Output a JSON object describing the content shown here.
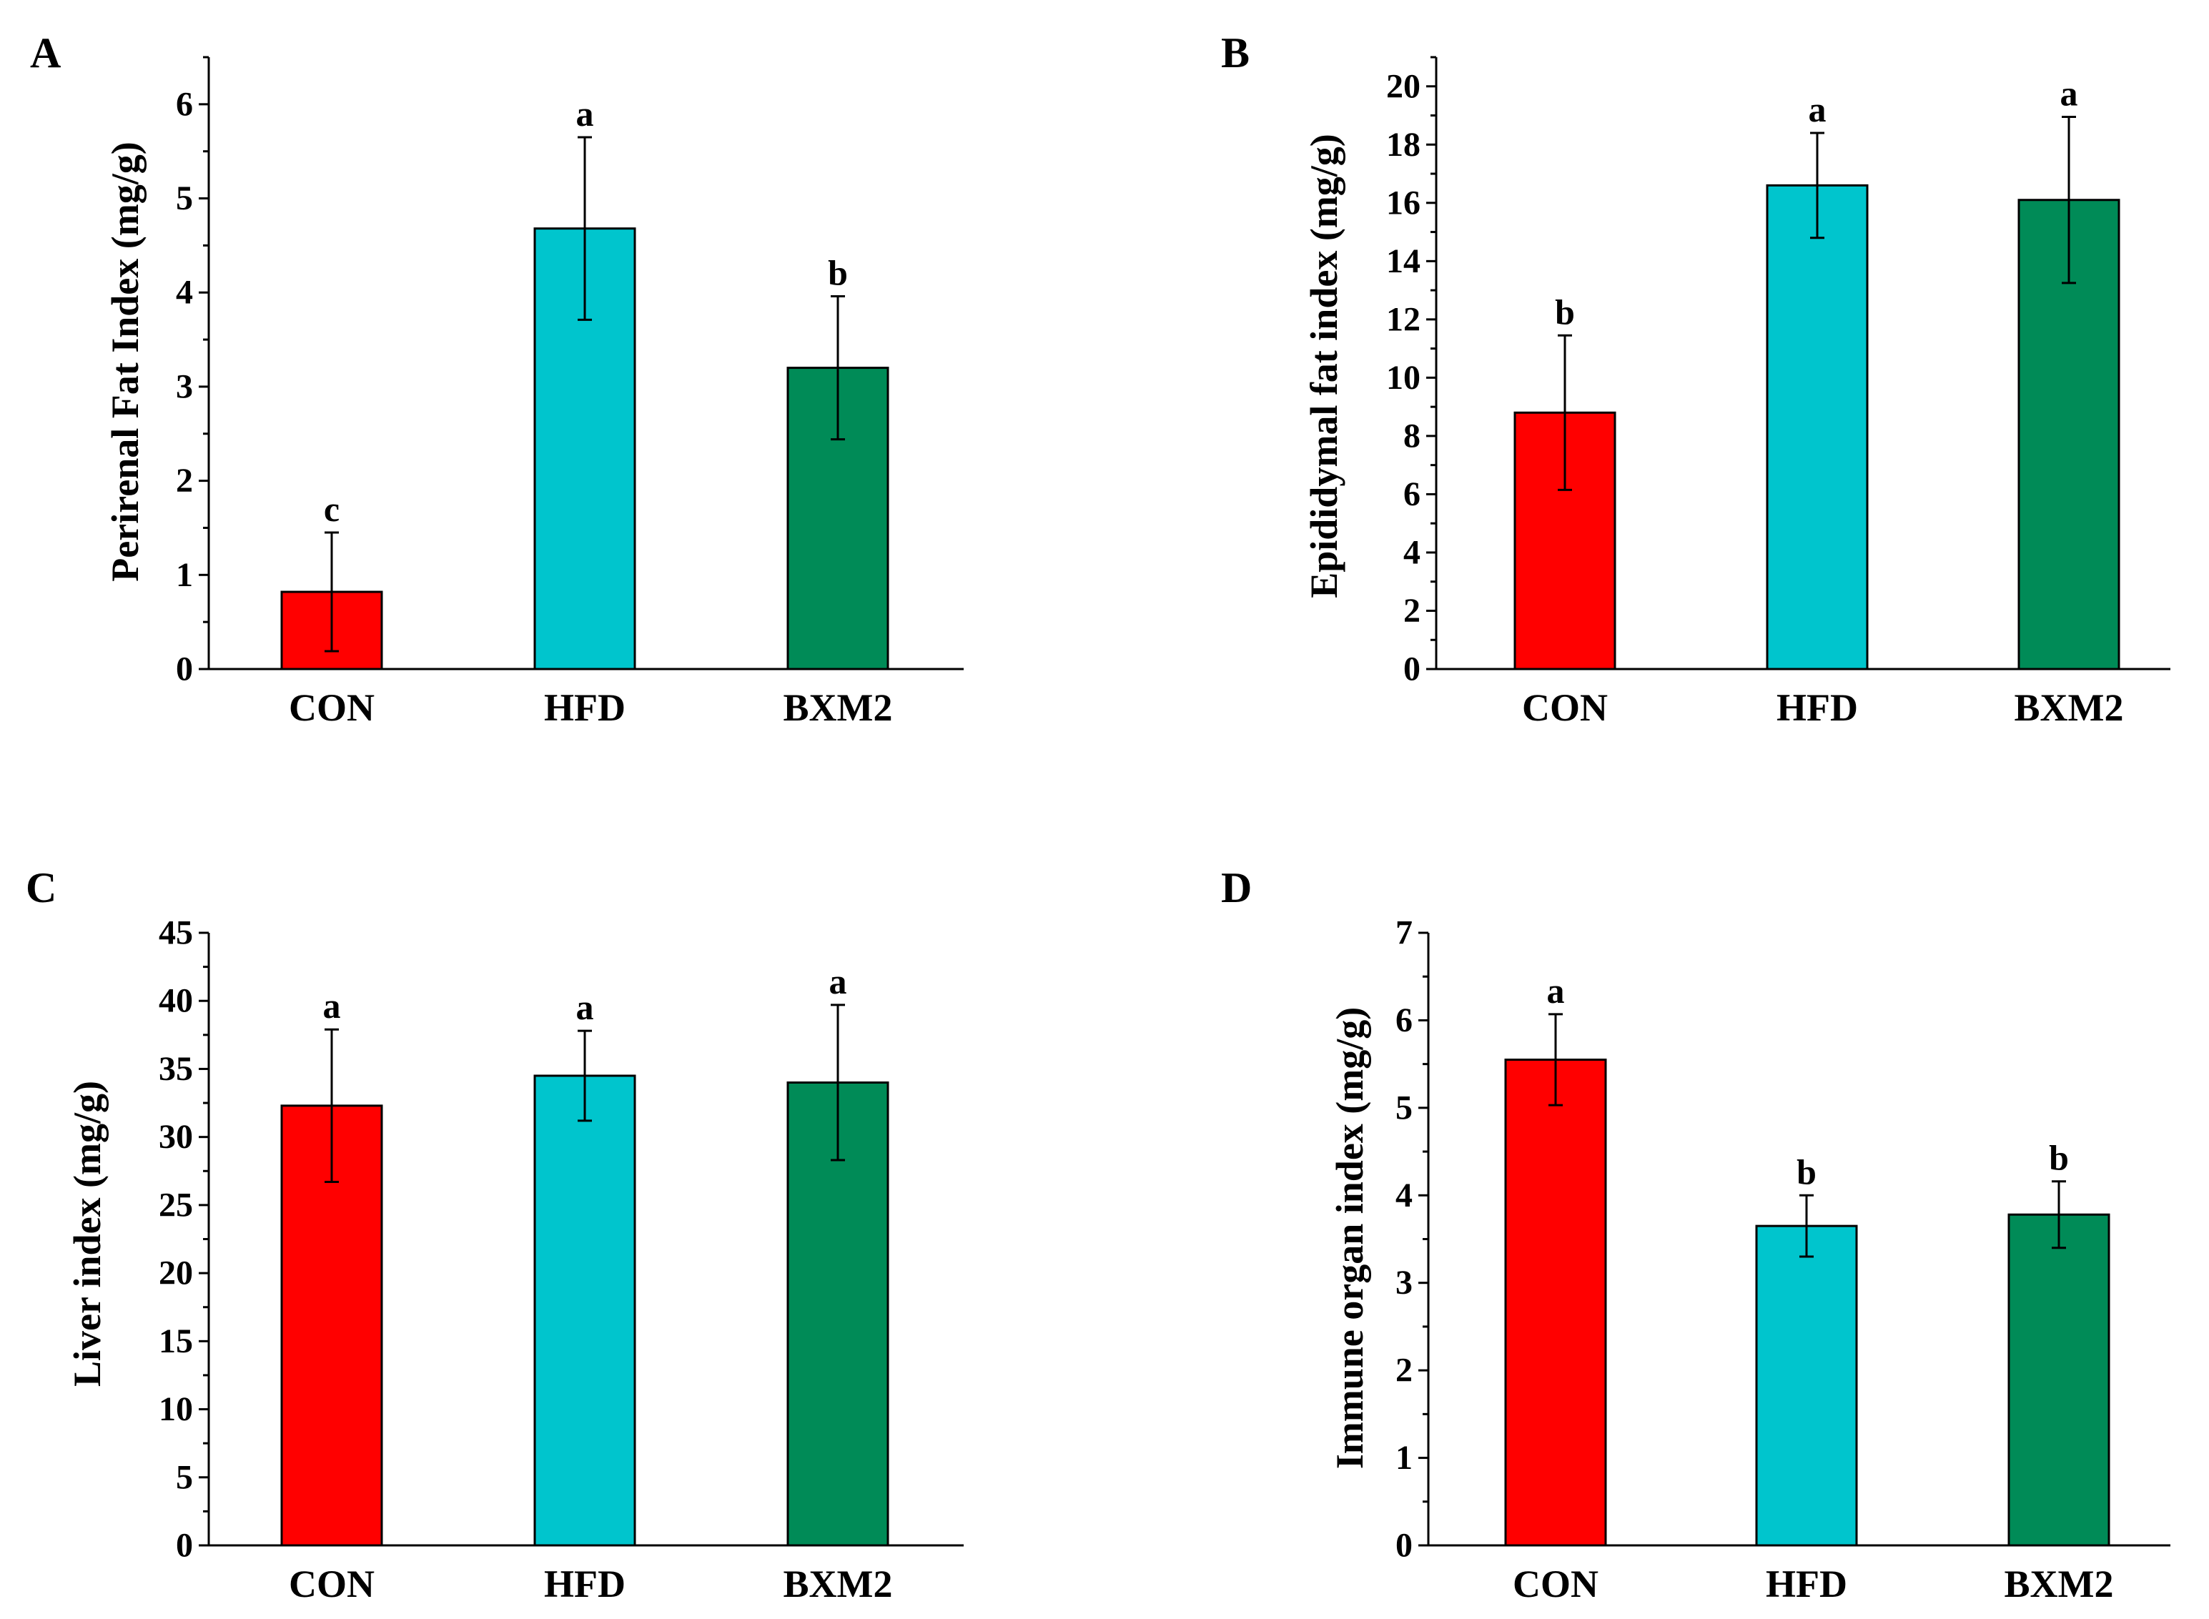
{
  "chart_data": [
    {
      "panel": "A",
      "type": "bar",
      "categories": [
        "CON",
        "HFD",
        "BXM2"
      ],
      "values": [
        0.82,
        4.68,
        3.2
      ],
      "errors": [
        0.63,
        0.97,
        0.76
      ],
      "significance": [
        "c",
        "a",
        "b"
      ],
      "ylabel": "Perirenal Fat Index (mg/g)",
      "xlabel": "",
      "ylim": [
        0,
        6.5
      ],
      "yticks": [
        0,
        1,
        2,
        3,
        4,
        5,
        6
      ],
      "ytick_labels": [
        "0",
        "1",
        "2",
        "3",
        "4",
        "5",
        "6"
      ],
      "minor_ticks": true,
      "grid": false,
      "colors": [
        "#ff0000",
        "#00c5cd",
        "#008b57"
      ]
    },
    {
      "panel": "B",
      "type": "bar",
      "categories": [
        "CON",
        "HFD",
        "BXM2"
      ],
      "values": [
        8.8,
        16.6,
        16.1
      ],
      "errors": [
        2.65,
        1.8,
        2.85
      ],
      "significance": [
        "b",
        "a",
        "a"
      ],
      "ylabel": "Epididymal fat index (mg/g)",
      "xlabel": "",
      "ylim": [
        0,
        21
      ],
      "yticks": [
        0,
        2,
        4,
        6,
        8,
        10,
        12,
        14,
        16,
        18,
        20
      ],
      "ytick_labels": [
        "0",
        "2",
        "4",
        "6",
        "8",
        "10",
        "12",
        "14",
        "16",
        "18",
        "20"
      ],
      "minor_ticks": true,
      "grid": false,
      "colors": [
        "#ff0000",
        "#00c5cd",
        "#008b57"
      ]
    },
    {
      "panel": "C",
      "type": "bar",
      "categories": [
        "CON",
        "HFD",
        "BXM2"
      ],
      "values": [
        32.3,
        34.5,
        34.0
      ],
      "errors": [
        5.6,
        3.3,
        5.7
      ],
      "significance": [
        "a",
        "a",
        "a"
      ],
      "ylabel": "Liver index (mg/g)",
      "xlabel": "",
      "ylim": [
        0,
        45
      ],
      "yticks": [
        0,
        5,
        10,
        15,
        20,
        25,
        30,
        35,
        40,
        45
      ],
      "ytick_labels": [
        "0",
        "5",
        "10",
        "15",
        "20",
        "25",
        "30",
        "35",
        "40",
        "45"
      ],
      "minor_ticks": true,
      "grid": false,
      "colors": [
        "#ff0000",
        "#00c5cd",
        "#008b57"
      ]
    },
    {
      "panel": "D",
      "type": "bar",
      "categories": [
        "CON",
        "HFD",
        "BXM2"
      ],
      "values": [
        5.55,
        3.65,
        3.78
      ],
      "errors": [
        0.52,
        0.35,
        0.38
      ],
      "significance": [
        "a",
        "b",
        "b"
      ],
      "ylabel": "Immune organ index (mg/g)",
      "xlabel": "",
      "ylim": [
        0,
        7
      ],
      "yticks": [
        0,
        1,
        2,
        3,
        4,
        5,
        6,
        7
      ],
      "ytick_labels": [
        "0",
        "1",
        "2",
        "3",
        "4",
        "5",
        "6",
        "7"
      ],
      "minor_ticks": true,
      "grid": false,
      "colors": [
        "#ff0000",
        "#00c5cd",
        "#008b57"
      ]
    }
  ]
}
